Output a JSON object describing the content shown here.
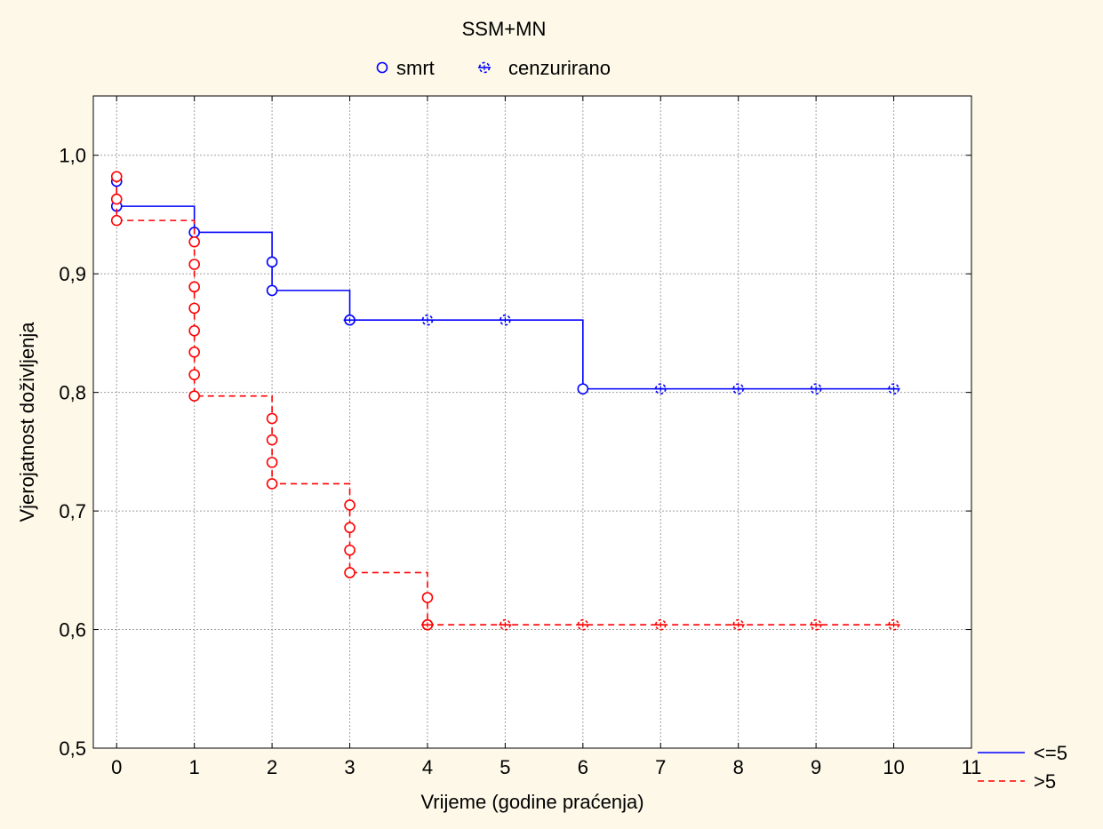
{
  "chart_data": {
    "type": "line",
    "title": "SSM+MN",
    "xlabel": "Vrijeme (godine praćenja)",
    "ylabel": "Vjerojatnost doživljenja",
    "xlim": [
      -0.3,
      11
    ],
    "ylim": [
      0.5,
      1.05
    ],
    "x_ticks": [
      0,
      1,
      2,
      3,
      4,
      5,
      6,
      7,
      8,
      9,
      10,
      11
    ],
    "x_tick_labels": [
      "0",
      "1",
      "2",
      "3",
      "4",
      "5",
      "6",
      "7",
      "8",
      "9",
      "10",
      "11"
    ],
    "y_ticks": [
      0.5,
      0.6,
      0.7,
      0.8,
      0.9,
      1.0
    ],
    "y_tick_labels": [
      "0,5",
      "0,6",
      "0,7",
      "0,8",
      "0,9",
      "1,0"
    ],
    "grid": true,
    "marker_legend": [
      {
        "label": "smrt",
        "marker": "circle"
      },
      {
        "label": "cenzurirano",
        "marker": "censored"
      }
    ],
    "series_legend_position": "bottom-right",
    "series": [
      {
        "name": "<=5",
        "color": "#0000ff",
        "dash": "solid",
        "steps": [
          {
            "x": 0,
            "y": 0.957
          },
          {
            "x": 1,
            "y": 0.935
          },
          {
            "x": 2,
            "y": 0.886
          },
          {
            "x": 3,
            "y": 0.861
          },
          {
            "x": 6,
            "y": 0.803
          },
          {
            "x": 10,
            "y": 0.803
          }
        ],
        "events": [
          {
            "x": 0,
            "y": 0.978
          },
          {
            "x": 0,
            "y": 0.957
          },
          {
            "x": 1,
            "y": 0.935
          },
          {
            "x": 2,
            "y": 0.91
          },
          {
            "x": 2,
            "y": 0.886
          },
          {
            "x": 3,
            "y": 0.861
          },
          {
            "x": 6,
            "y": 0.803
          }
        ],
        "censored": [
          {
            "x": 3,
            "y": 0.861
          },
          {
            "x": 4,
            "y": 0.861
          },
          {
            "x": 5,
            "y": 0.861
          },
          {
            "x": 7,
            "y": 0.803
          },
          {
            "x": 8,
            "y": 0.803
          },
          {
            "x": 9,
            "y": 0.803
          },
          {
            "x": 10,
            "y": 0.803
          }
        ]
      },
      {
        "name": ">5",
        "color": "#ff0000",
        "dash": "dashed",
        "steps": [
          {
            "x": 0,
            "y": 0.945
          },
          {
            "x": 1,
            "y": 0.797
          },
          {
            "x": 2,
            "y": 0.723
          },
          {
            "x": 3,
            "y": 0.648
          },
          {
            "x": 4,
            "y": 0.604
          },
          {
            "x": 10,
            "y": 0.604
          }
        ],
        "events": [
          {
            "x": 0,
            "y": 0.982
          },
          {
            "x": 0,
            "y": 0.963
          },
          {
            "x": 0,
            "y": 0.945
          },
          {
            "x": 1,
            "y": 0.927
          },
          {
            "x": 1,
            "y": 0.908
          },
          {
            "x": 1,
            "y": 0.889
          },
          {
            "x": 1,
            "y": 0.871
          },
          {
            "x": 1,
            "y": 0.852
          },
          {
            "x": 1,
            "y": 0.834
          },
          {
            "x": 1,
            "y": 0.815
          },
          {
            "x": 1,
            "y": 0.797
          },
          {
            "x": 2,
            "y": 0.778
          },
          {
            "x": 2,
            "y": 0.76
          },
          {
            "x": 2,
            "y": 0.741
          },
          {
            "x": 2,
            "y": 0.723
          },
          {
            "x": 3,
            "y": 0.705
          },
          {
            "x": 3,
            "y": 0.686
          },
          {
            "x": 3,
            "y": 0.667
          },
          {
            "x": 3,
            "y": 0.648
          },
          {
            "x": 4,
            "y": 0.627
          },
          {
            "x": 4,
            "y": 0.604
          }
        ],
        "censored": [
          {
            "x": 4,
            "y": 0.604
          },
          {
            "x": 5,
            "y": 0.604
          },
          {
            "x": 6,
            "y": 0.604
          },
          {
            "x": 7,
            "y": 0.604
          },
          {
            "x": 8,
            "y": 0.604
          },
          {
            "x": 9,
            "y": 0.604
          },
          {
            "x": 10,
            "y": 0.604
          }
        ]
      }
    ]
  }
}
